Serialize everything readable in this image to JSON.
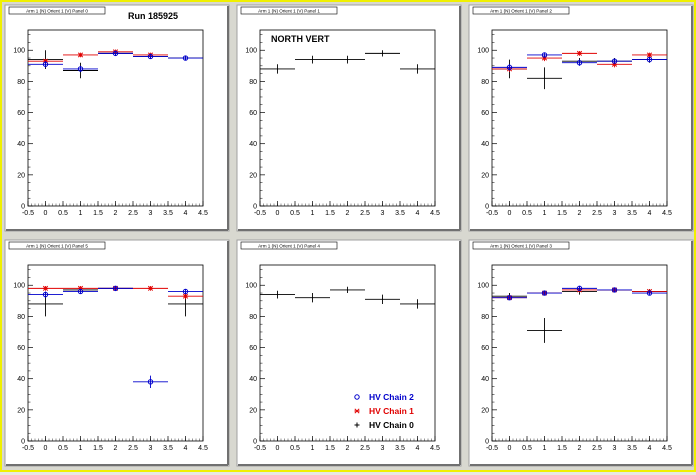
{
  "colors": {
    "series_black": "#000000",
    "series_red": "#e00000",
    "series_blue": "#0000cc"
  },
  "header": {
    "run_label": "Run 185925",
    "north_label": "NORTH VERT"
  },
  "legend": {
    "entries": [
      "HV Chain 2",
      "HV Chain 1",
      "HV Chain 0"
    ],
    "markers": [
      "circle",
      "star",
      "plus"
    ],
    "colors": [
      "#0000cc",
      "#e00000",
      "#000000"
    ]
  },
  "chart_data": [
    {
      "type": "scatter",
      "title": "Arm 1 (N) Orient 1 (V) Panel 0",
      "x_ticks": [
        "-0.5",
        "0",
        "0.5",
        "1",
        "1.5",
        "2",
        "2.5",
        "3",
        "3.5",
        "4",
        "4.5"
      ],
      "y_ticks": [
        "0",
        "20",
        "40",
        "60",
        "80",
        "100"
      ],
      "xlim": [
        -0.5,
        4.5
      ],
      "ylim": [
        0,
        113
      ],
      "series": [
        {
          "name": "HV Chain 0",
          "marker": "plus",
          "points": [
            {
              "x": 0,
              "y": 94,
              "xerr": 0.5,
              "yerr": 6
            },
            {
              "x": 1,
              "y": 87,
              "xerr": 0.5,
              "yerr": 5
            },
            {
              "x": 2,
              "y": 98,
              "xerr": 0.5,
              "yerr": 1.5
            },
            {
              "x": 3,
              "y": 96,
              "xerr": 0.5,
              "yerr": 1.5
            },
            {
              "x": 4,
              "y": 95,
              "xerr": 0.5,
              "yerr": 1.5
            }
          ]
        },
        {
          "name": "HV Chain 1",
          "marker": "star",
          "points": [
            {
              "x": 0,
              "y": 93,
              "xerr": 0.5,
              "yerr": 1.5
            },
            {
              "x": 1,
              "y": 97,
              "xerr": 0.5,
              "yerr": 1.5
            },
            {
              "x": 2,
              "y": 99,
              "xerr": 0.5,
              "yerr": 1.5
            },
            {
              "x": 3,
              "y": 97,
              "xerr": 0.5,
              "yerr": 1.5
            }
          ]
        },
        {
          "name": "HV Chain 2",
          "marker": "circle",
          "points": [
            {
              "x": 0,
              "y": 91,
              "xerr": 0.5,
              "yerr": 2
            },
            {
              "x": 1,
              "y": 88,
              "xerr": 0.5,
              "yerr": 2
            },
            {
              "x": 2,
              "y": 98,
              "xerr": 0.5,
              "yerr": 1.5
            },
            {
              "x": 3,
              "y": 96,
              "xerr": 0.5,
              "yerr": 1.5
            },
            {
              "x": 4,
              "y": 95,
              "xerr": 0.5,
              "yerr": 1.5
            }
          ]
        }
      ]
    },
    {
      "type": "scatter",
      "title": "Arm 1 (N) Orient 1 (V) Panel 1",
      "x_ticks": [
        "-0.5",
        "0",
        "0.5",
        "1",
        "1.5",
        "2",
        "2.5",
        "3",
        "3.5",
        "4",
        "4.5"
      ],
      "y_ticks": [
        "0",
        "20",
        "40",
        "60",
        "80",
        "100"
      ],
      "xlim": [
        -0.5,
        4.5
      ],
      "ylim": [
        0,
        113
      ],
      "series": [
        {
          "name": "HV Chain 0",
          "marker": "plus",
          "points": [
            {
              "x": 0,
              "y": 88,
              "xerr": 0.5,
              "yerr": 3
            },
            {
              "x": 1,
              "y": 94,
              "xerr": 0.5,
              "yerr": 2.5
            },
            {
              "x": 2,
              "y": 94,
              "xerr": 0.5,
              "yerr": 2.5
            },
            {
              "x": 3,
              "y": 98,
              "xerr": 0.5,
              "yerr": 2
            },
            {
              "x": 4,
              "y": 88,
              "xerr": 0.5,
              "yerr": 3
            }
          ]
        }
      ]
    },
    {
      "type": "scatter",
      "title": "Arm 1 (N) Orient 1 (V) Panel 2",
      "x_ticks": [
        "-0.5",
        "0",
        "0.5",
        "1",
        "1.5",
        "2",
        "2.5",
        "3",
        "3.5",
        "4",
        "4.5"
      ],
      "y_ticks": [
        "0",
        "20",
        "40",
        "60",
        "80",
        "100"
      ],
      "xlim": [
        -0.5,
        4.5
      ],
      "ylim": [
        0,
        113
      ],
      "series": [
        {
          "name": "HV Chain 0",
          "marker": "plus",
          "points": [
            {
              "x": 0,
              "y": 88,
              "xerr": 0.5,
              "yerr": 6
            },
            {
              "x": 1,
              "y": 82,
              "xerr": 0.5,
              "yerr": 7
            },
            {
              "x": 2,
              "y": 93,
              "xerr": 0.5,
              "yerr": 2
            },
            {
              "x": 3,
              "y": 93,
              "xerr": 0.5,
              "yerr": 2
            },
            {
              "x": 4,
              "y": 94,
              "xerr": 0.5,
              "yerr": 2
            }
          ]
        },
        {
          "name": "HV Chain 1",
          "marker": "star",
          "points": [
            {
              "x": 0,
              "y": 88,
              "xerr": 0.5,
              "yerr": 2
            },
            {
              "x": 1,
              "y": 95,
              "xerr": 0.5,
              "yerr": 2
            },
            {
              "x": 2,
              "y": 98,
              "xerr": 0.5,
              "yerr": 1.5
            },
            {
              "x": 3,
              "y": 91,
              "xerr": 0.5,
              "yerr": 2
            },
            {
              "x": 4,
              "y": 97,
              "xerr": 0.5,
              "yerr": 1.5
            }
          ]
        },
        {
          "name": "HV Chain 2",
          "marker": "circle",
          "points": [
            {
              "x": 0,
              "y": 89,
              "xerr": 0.5,
              "yerr": 2
            },
            {
              "x": 1,
              "y": 97,
              "xerr": 0.5,
              "yerr": 1.5
            },
            {
              "x": 2,
              "y": 92,
              "xerr": 0.5,
              "yerr": 2
            },
            {
              "x": 3,
              "y": 93,
              "xerr": 0.5,
              "yerr": 1.5
            },
            {
              "x": 4,
              "y": 94,
              "xerr": 0.5,
              "yerr": 1.5
            }
          ]
        }
      ]
    },
    {
      "type": "scatter",
      "title": "Arm 1 (N) Orient 1 (V) Panel 5",
      "x_ticks": [
        "-0.5",
        "0",
        "0.5",
        "1",
        "1.5",
        "2",
        "2.5",
        "3",
        "3.5",
        "4",
        "4.5"
      ],
      "y_ticks": [
        "0",
        "20",
        "40",
        "60",
        "80",
        "100"
      ],
      "xlim": [
        -0.5,
        4.5
      ],
      "ylim": [
        0,
        113
      ],
      "series": [
        {
          "name": "HV Chain 0",
          "marker": "plus",
          "points": [
            {
              "x": 0,
              "y": 88,
              "xerr": 0.5,
              "yerr": 8
            },
            {
              "x": 1,
              "y": 97,
              "xerr": 0.5,
              "yerr": 1.5
            },
            {
              "x": 2,
              "y": 98,
              "xerr": 0.5,
              "yerr": 1.5
            },
            {
              "x": 4,
              "y": 88,
              "xerr": 0.5,
              "yerr": 8
            }
          ]
        },
        {
          "name": "HV Chain 1",
          "marker": "star",
          "points": [
            {
              "x": 0,
              "y": 98,
              "xerr": 0.5,
              "yerr": 1.5
            },
            {
              "x": 1,
              "y": 98,
              "xerr": 0.5,
              "yerr": 1.5
            },
            {
              "x": 2,
              "y": 98,
              "xerr": 0.5,
              "yerr": 1.5
            },
            {
              "x": 3,
              "y": 98,
              "xerr": 0.5,
              "yerr": 1.5
            },
            {
              "x": 4,
              "y": 93,
              "xerr": 0.5,
              "yerr": 2
            }
          ]
        },
        {
          "name": "HV Chain 2",
          "marker": "circle",
          "points": [
            {
              "x": 0,
              "y": 94,
              "xerr": 0.5,
              "yerr": 2
            },
            {
              "x": 1,
              "y": 96,
              "xerr": 0.5,
              "yerr": 1.5
            },
            {
              "x": 2,
              "y": 98,
              "xerr": 0.5,
              "yerr": 1.5
            },
            {
              "x": 3,
              "y": 38,
              "xerr": 0.5,
              "yerr": 4
            },
            {
              "x": 4,
              "y": 96,
              "xerr": 0.5,
              "yerr": 1.5
            }
          ]
        }
      ]
    },
    {
      "type": "scatter",
      "title": "Arm 1 (N) Orient 1 (V) Panel 4",
      "x_ticks": [
        "-0.5",
        "0",
        "0.5",
        "1",
        "1.5",
        "2",
        "2.5",
        "3",
        "3.5",
        "4",
        "4.5"
      ],
      "y_ticks": [
        "0",
        "20",
        "40",
        "60",
        "80",
        "100"
      ],
      "xlim": [
        -0.5,
        4.5
      ],
      "ylim": [
        0,
        113
      ],
      "series": [
        {
          "name": "HV Chain 0",
          "marker": "plus",
          "points": [
            {
              "x": 0,
              "y": 94,
              "xerr": 0.5,
              "yerr": 2.5
            },
            {
              "x": 1,
              "y": 92,
              "xerr": 0.5,
              "yerr": 3
            },
            {
              "x": 2,
              "y": 97,
              "xerr": 0.5,
              "yerr": 2
            },
            {
              "x": 3,
              "y": 91,
              "xerr": 0.5,
              "yerr": 3
            },
            {
              "x": 4,
              "y": 88,
              "xerr": 0.5,
              "yerr": 3
            }
          ]
        }
      ]
    },
    {
      "type": "scatter",
      "title": "Arm 1 (N) Orient 1 (V) Panel 3",
      "x_ticks": [
        "-0.5",
        "0",
        "0.5",
        "1",
        "1.5",
        "2",
        "2.5",
        "3",
        "3.5",
        "4",
        "4.5"
      ],
      "y_ticks": [
        "0",
        "20",
        "40",
        "60",
        "80",
        "100"
      ],
      "xlim": [
        -0.5,
        4.5
      ],
      "ylim": [
        0,
        113
      ],
      "series": [
        {
          "name": "HV Chain 0",
          "marker": "plus",
          "points": [
            {
              "x": 0,
              "y": 93,
              "xerr": 0.5,
              "yerr": 2
            },
            {
              "x": 1,
              "y": 71,
              "xerr": 0.5,
              "yerr": 8
            },
            {
              "x": 2,
              "y": 96,
              "xerr": 0.5,
              "yerr": 2
            },
            {
              "x": 3,
              "y": 97,
              "xerr": 0.5,
              "yerr": 1.5
            },
            {
              "x": 4,
              "y": 96,
              "xerr": 0.5,
              "yerr": 1.5
            }
          ]
        },
        {
          "name": "HV Chain 1",
          "marker": "star",
          "points": [
            {
              "x": 0,
              "y": 92,
              "xerr": 0.5,
              "yerr": 1.5
            },
            {
              "x": 1,
              "y": 95,
              "xerr": 0.5,
              "yerr": 1.5
            },
            {
              "x": 2,
              "y": 97,
              "xerr": 0.5,
              "yerr": 1.5
            },
            {
              "x": 3,
              "y": 97,
              "xerr": 0.5,
              "yerr": 1.5
            },
            {
              "x": 4,
              "y": 96,
              "xerr": 0.5,
              "yerr": 1.5
            }
          ]
        },
        {
          "name": "HV Chain 2",
          "marker": "circle",
          "points": [
            {
              "x": 0,
              "y": 92,
              "xerr": 0.5,
              "yerr": 1.5
            },
            {
              "x": 1,
              "y": 95,
              "xerr": 0.5,
              "yerr": 1.5
            },
            {
              "x": 2,
              "y": 98,
              "xerr": 0.5,
              "yerr": 1.5
            },
            {
              "x": 3,
              "y": 97,
              "xerr": 0.5,
              "yerr": 1.5
            },
            {
              "x": 4,
              "y": 95,
              "xerr": 0.5,
              "yerr": 1.5
            }
          ]
        }
      ]
    }
  ]
}
